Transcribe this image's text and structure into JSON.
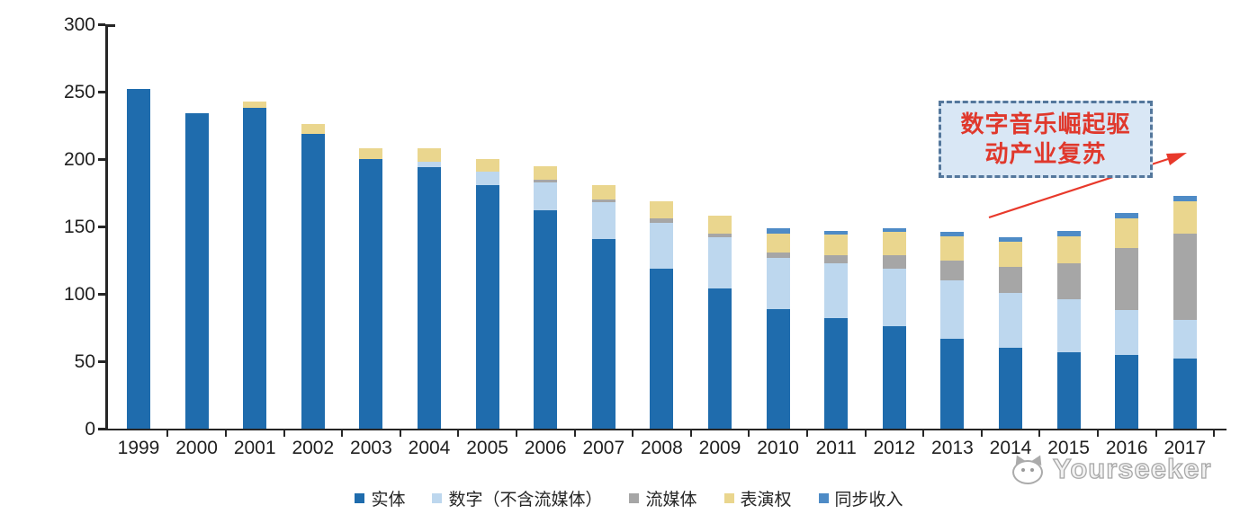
{
  "chart_data": {
    "type": "bar",
    "stacked": true,
    "title": "",
    "xlabel": "",
    "ylabel": "",
    "grid": false,
    "legend_position": "bottom",
    "ylim": [
      0,
      300
    ],
    "yticks": [
      0,
      50,
      100,
      150,
      200,
      250,
      300
    ],
    "categories": [
      "1999",
      "2000",
      "2001",
      "2002",
      "2003",
      "2004",
      "2005",
      "2006",
      "2007",
      "2008",
      "2009",
      "2010",
      "2011",
      "2012",
      "2013",
      "2014",
      "2015",
      "2016",
      "2017"
    ],
    "series": [
      {
        "name": "实体",
        "color": "#1F6CAD",
        "values": [
          252,
          234,
          238,
          219,
          200,
          194,
          181,
          162,
          141,
          119,
          104,
          89,
          82,
          76,
          67,
          60,
          57,
          55,
          52
        ]
      },
      {
        "name": "数字（不含流媒体）",
        "color": "#BDD7EE",
        "values": [
          0,
          0,
          0,
          0,
          0,
          4,
          10,
          21,
          27,
          34,
          38,
          38,
          41,
          43,
          43,
          41,
          39,
          33,
          29
        ]
      },
      {
        "name": "流媒体",
        "color": "#A6A6A6",
        "values": [
          0,
          0,
          0,
          0,
          0,
          0,
          0,
          2,
          2,
          3,
          3,
          4,
          6,
          10,
          15,
          19,
          27,
          46,
          64
        ]
      },
      {
        "name": "表演权",
        "color": "#EAD68E",
        "values": [
          0,
          0,
          5,
          7,
          8,
          10,
          9,
          10,
          11,
          13,
          13,
          14,
          15,
          17,
          18,
          19,
          20,
          22,
          24
        ]
      },
      {
        "name": "同步收入",
        "color": "#4E8BC6",
        "values": [
          0,
          0,
          0,
          0,
          0,
          0,
          0,
          0,
          0,
          0,
          0,
          4,
          3,
          3,
          3,
          3,
          4,
          4,
          4
        ]
      }
    ]
  },
  "annotation": {
    "line1": "数字音乐崛起驱",
    "line2": "动产业复苏",
    "text_color": "#E0382C",
    "box_fill": "#D9E7F5",
    "box_border_color": "#54779C",
    "arrow_color": "#E8392B"
  },
  "watermark": {
    "text": "Yourseeker",
    "logo": "cat-face-logo"
  }
}
